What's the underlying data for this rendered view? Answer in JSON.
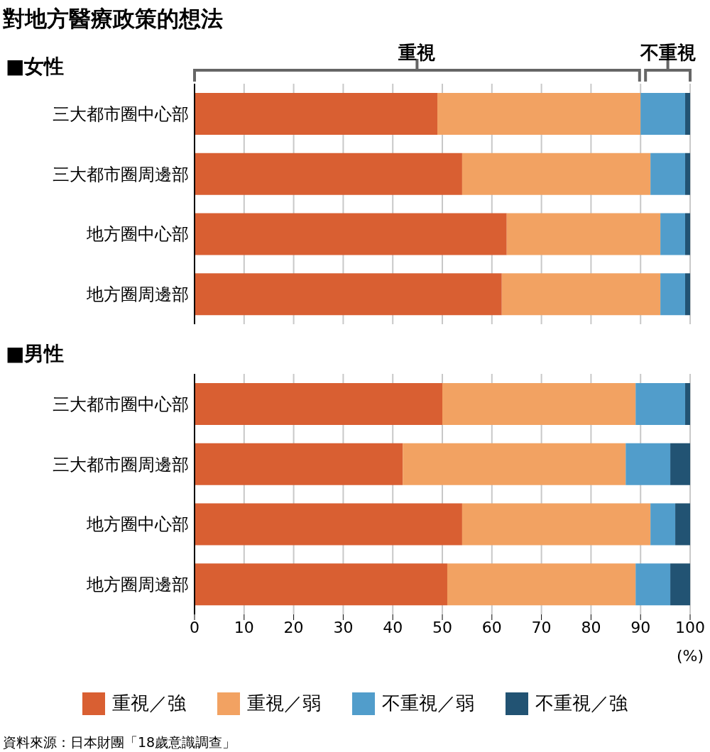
{
  "chart_data": [
    {
      "type": "bar",
      "title": "對地方醫療政策的想法",
      "subtitle": "■女性",
      "orientation": "horizontal",
      "stacked": true,
      "categories": [
        "三大都市圈中心部",
        "三大都市圈周邊部",
        "地方圈中心部",
        "地方圈周邊部"
      ],
      "series": [
        {
          "color": "#d95f32",
          "values": [
            49,
            54,
            63,
            62
          ]
        },
        {
          "color": "#f2a262",
          "values": [
            41,
            38,
            31,
            32
          ]
        },
        {
          "color": "#519dcb",
          "values": [
            9,
            7,
            5,
            5
          ]
        },
        {
          "color": "#225373",
          "values": [
            1,
            1,
            1,
            1
          ]
        }
      ],
      "xlim": [
        0,
        100
      ],
      "xticks": [
        0,
        10,
        20,
        30,
        40,
        50,
        60,
        70,
        80,
        90,
        100
      ],
      "tick_labels": "y",
      "grid": "x",
      "annotations": [
        "重視",
        "不重視"
      ]
    },
    {
      "type": "bar",
      "title": "■男性",
      "xlabel": "(%)",
      "orientation": "horizontal",
      "stacked": true,
      "categories": [
        "三大都市圈中心部",
        "三大都市圈周邊部",
        "地方圈中心部",
        "地方圈周邊部"
      ],
      "series": [
        {
          "name": "重視／強",
          "color": "#d95f32",
          "values": [
            50,
            42,
            54,
            51
          ]
        },
        {
          "name": "重視／弱",
          "color": "#f2a262",
          "values": [
            39,
            45,
            38,
            38
          ]
        },
        {
          "name": "不重視／弱",
          "color": "#519dcb",
          "values": [
            10,
            9,
            5,
            7
          ]
        },
        {
          "name": "不重視／強",
          "color": "#225373",
          "values": [
            1,
            4,
            3,
            4
          ]
        }
      ],
      "xlim": [
        0,
        100
      ],
      "xticks": [
        0,
        10,
        20,
        30,
        40,
        50,
        60,
        70,
        80,
        90,
        100
      ],
      "grid": "x",
      "legend": "bottom",
      "annotations": [
        "資料來源：日本財團「18歲意識調查」"
      ]
    }
  ]
}
